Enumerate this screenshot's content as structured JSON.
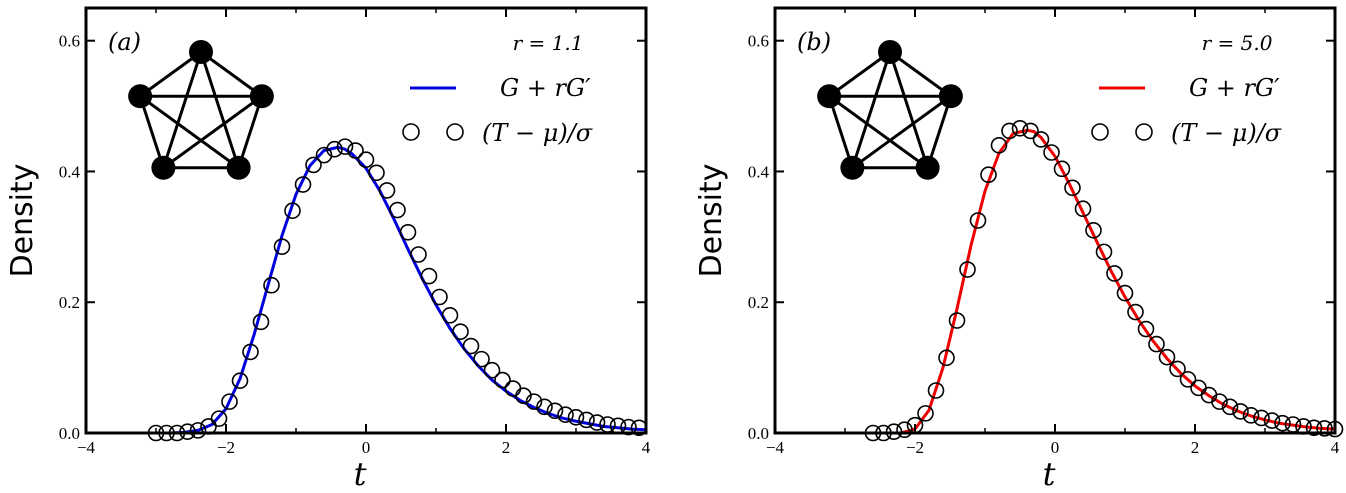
{
  "chart_data": [
    {
      "panel_label": "(a)",
      "type": "line+scatter",
      "parameter_text": "r = 1.1",
      "legend": [
        {
          "label": "G + rG′",
          "kind": "line",
          "color": "#0000dd"
        },
        {
          "label": "(T − μ)/σ",
          "kind": "marker",
          "color": "#000000"
        }
      ],
      "ylabel": "Density",
      "xlabel": "t",
      "xlim": [
        -4,
        4
      ],
      "ylim": [
        0,
        0.65
      ],
      "xticks": [
        -4,
        -2,
        0,
        2,
        4
      ],
      "yticks": [
        0.0,
        0.2,
        0.4,
        0.6
      ],
      "xtick_labels": [
        "−4",
        "−2",
        "0",
        "2",
        "4"
      ],
      "ytick_labels": [
        "0.0",
        "0.2",
        "0.4",
        "0.6"
      ],
      "grid": false,
      "legend_position": "top-right",
      "inset": "complete graph K5 (5 nodes, all edges)",
      "curve_color": "#0000dd",
      "curve": {
        "x": [
          -2.8,
          -2.6,
          -2.4,
          -2.2,
          -2.0,
          -1.8,
          -1.6,
          -1.4,
          -1.2,
          -1.0,
          -0.8,
          -0.6,
          -0.4,
          -0.3,
          -0.2,
          0.0,
          0.2,
          0.4,
          0.6,
          0.8,
          1.0,
          1.2,
          1.4,
          1.6,
          1.8,
          2.0,
          2.2,
          2.4,
          2.6,
          2.8,
          3.0,
          3.2,
          3.4,
          3.6,
          3.8,
          4.0
        ],
        "y": [
          0.0,
          0.001,
          0.004,
          0.013,
          0.037,
          0.083,
          0.15,
          0.226,
          0.302,
          0.365,
          0.409,
          0.432,
          0.437,
          0.434,
          0.427,
          0.405,
          0.37,
          0.327,
          0.281,
          0.237,
          0.196,
          0.16,
          0.129,
          0.103,
          0.081,
          0.064,
          0.05,
          0.039,
          0.03,
          0.023,
          0.018,
          0.014,
          0.01,
          0.008,
          0.006,
          0.005
        ]
      },
      "points": {
        "x": [
          -3.0,
          -2.85,
          -2.7,
          -2.55,
          -2.4,
          -2.25,
          -2.1,
          -1.95,
          -1.8,
          -1.65,
          -1.5,
          -1.35,
          -1.2,
          -1.05,
          -0.9,
          -0.75,
          -0.6,
          -0.45,
          -0.3,
          -0.15,
          0.0,
          0.15,
          0.3,
          0.45,
          0.6,
          0.75,
          0.9,
          1.05,
          1.2,
          1.35,
          1.5,
          1.65,
          1.8,
          1.95,
          2.1,
          2.25,
          2.4,
          2.55,
          2.7,
          2.85,
          3.0,
          3.15,
          3.3,
          3.45,
          3.6,
          3.75,
          3.9
        ],
        "y": [
          0.0,
          0.0,
          0.0,
          0.002,
          0.004,
          0.01,
          0.022,
          0.048,
          0.08,
          0.124,
          0.17,
          0.226,
          0.285,
          0.34,
          0.38,
          0.41,
          0.425,
          0.434,
          0.438,
          0.432,
          0.418,
          0.398,
          0.371,
          0.341,
          0.307,
          0.273,
          0.24,
          0.208,
          0.18,
          0.155,
          0.133,
          0.113,
          0.096,
          0.081,
          0.068,
          0.057,
          0.048,
          0.04,
          0.034,
          0.028,
          0.024,
          0.02,
          0.016,
          0.013,
          0.011,
          0.009,
          0.008
        ]
      }
    },
    {
      "panel_label": "(b)",
      "type": "line+scatter",
      "parameter_text": "r = 5.0",
      "legend": [
        {
          "label": "G + rG′",
          "kind": "line",
          "color": "#ee0000"
        },
        {
          "label": "(T − μ)/σ",
          "kind": "marker",
          "color": "#000000"
        }
      ],
      "ylabel": "Density",
      "xlabel": "t",
      "xlim": [
        -4,
        4
      ],
      "ylim": [
        0,
        0.65
      ],
      "xticks": [
        -4,
        -2,
        0,
        2,
        4
      ],
      "yticks": [
        0.0,
        0.2,
        0.4,
        0.6
      ],
      "xtick_labels": [
        "−4",
        "−2",
        "0",
        "2",
        "4"
      ],
      "ytick_labels": [
        "0.0",
        "0.2",
        "0.4",
        "0.6"
      ],
      "grid": false,
      "legend_position": "top-right",
      "inset": "complete graph K5 (5 nodes, all edges)",
      "curve_color": "#ee0000",
      "curve": {
        "x": [
          -2.2,
          -2.0,
          -1.8,
          -1.6,
          -1.4,
          -1.2,
          -1.0,
          -0.8,
          -0.6,
          -0.4,
          -0.3,
          -0.2,
          0.0,
          0.2,
          0.4,
          0.6,
          0.8,
          1.0,
          1.2,
          1.4,
          1.6,
          1.8,
          2.0,
          2.2,
          2.4,
          2.6,
          2.8,
          3.0,
          3.2,
          3.4,
          3.6,
          3.8,
          4.0
        ],
        "y": [
          0.0,
          0.006,
          0.035,
          0.1,
          0.19,
          0.287,
          0.37,
          0.428,
          0.458,
          0.463,
          0.461,
          0.452,
          0.423,
          0.382,
          0.337,
          0.292,
          0.248,
          0.208,
          0.172,
          0.141,
          0.114,
          0.091,
          0.072,
          0.057,
          0.044,
          0.034,
          0.026,
          0.02,
          0.015,
          0.012,
          0.009,
          0.007,
          0.006
        ]
      },
      "points": {
        "x": [
          -2.6,
          -2.45,
          -2.3,
          -2.15,
          -2.0,
          -1.85,
          -1.7,
          -1.55,
          -1.4,
          -1.25,
          -1.1,
          -0.95,
          -0.8,
          -0.65,
          -0.5,
          -0.35,
          -0.2,
          -0.05,
          0.1,
          0.25,
          0.4,
          0.55,
          0.7,
          0.85,
          1.0,
          1.15,
          1.3,
          1.45,
          1.6,
          1.75,
          1.9,
          2.05,
          2.2,
          2.35,
          2.5,
          2.65,
          2.8,
          2.95,
          3.1,
          3.25,
          3.4,
          3.55,
          3.7,
          3.85,
          4.0
        ],
        "y": [
          0.0,
          0.0,
          0.002,
          0.005,
          0.012,
          0.03,
          0.065,
          0.115,
          0.172,
          0.25,
          0.325,
          0.395,
          0.44,
          0.462,
          0.466,
          0.462,
          0.449,
          0.429,
          0.404,
          0.375,
          0.343,
          0.31,
          0.277,
          0.244,
          0.214,
          0.185,
          0.159,
          0.136,
          0.116,
          0.098,
          0.082,
          0.069,
          0.058,
          0.048,
          0.04,
          0.033,
          0.027,
          0.023,
          0.019,
          0.015,
          0.013,
          0.01,
          0.008,
          0.007,
          0.006
        ]
      }
    }
  ]
}
